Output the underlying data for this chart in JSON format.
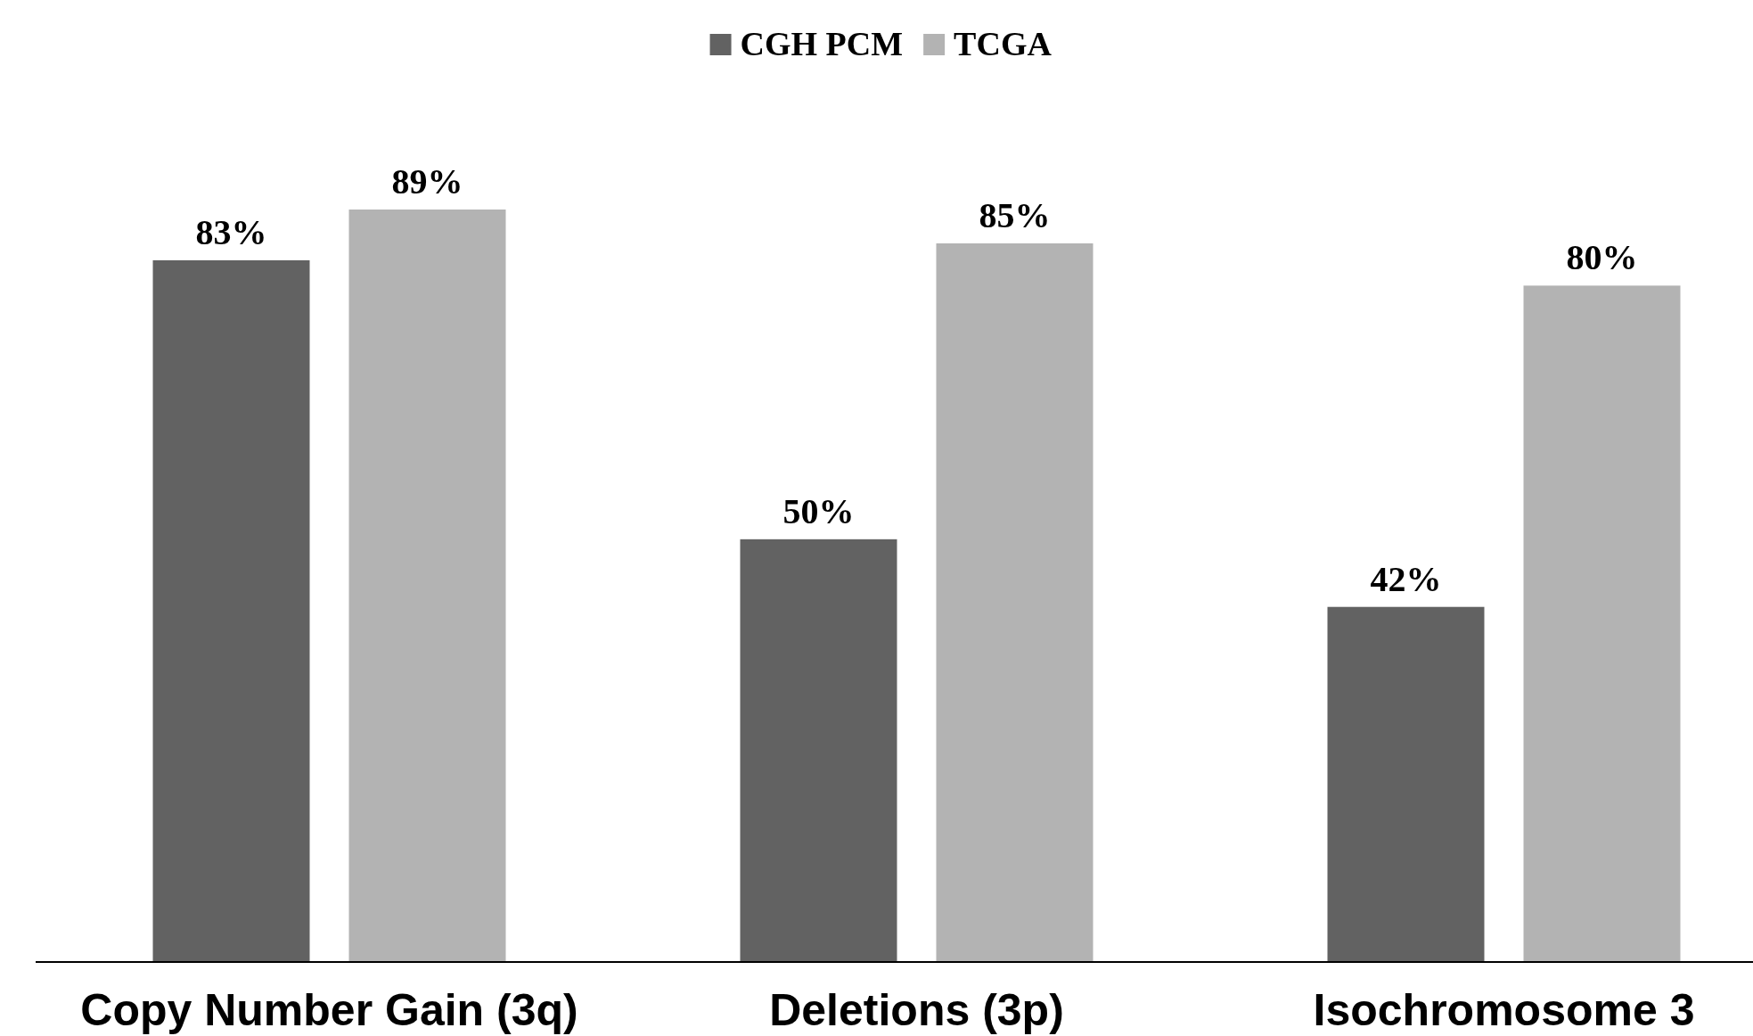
{
  "chart_data": {
    "type": "bar",
    "categories": [
      "Copy Number Gain (3q)",
      "Deletions (3p)",
      "Isochromosome 3"
    ],
    "series": [
      {
        "name": "CGH PCM",
        "color": "#626262",
        "values": [
          83,
          50,
          42
        ],
        "value_labels": [
          "83%",
          "50%",
          "42%"
        ]
      },
      {
        "name": "TCGA",
        "color": "#b3b3b3",
        "values": [
          89,
          85,
          80
        ],
        "value_labels": [
          "89%",
          "85%",
          "80%"
        ]
      }
    ],
    "tick_labels": "x",
    "legend": "top"
  }
}
